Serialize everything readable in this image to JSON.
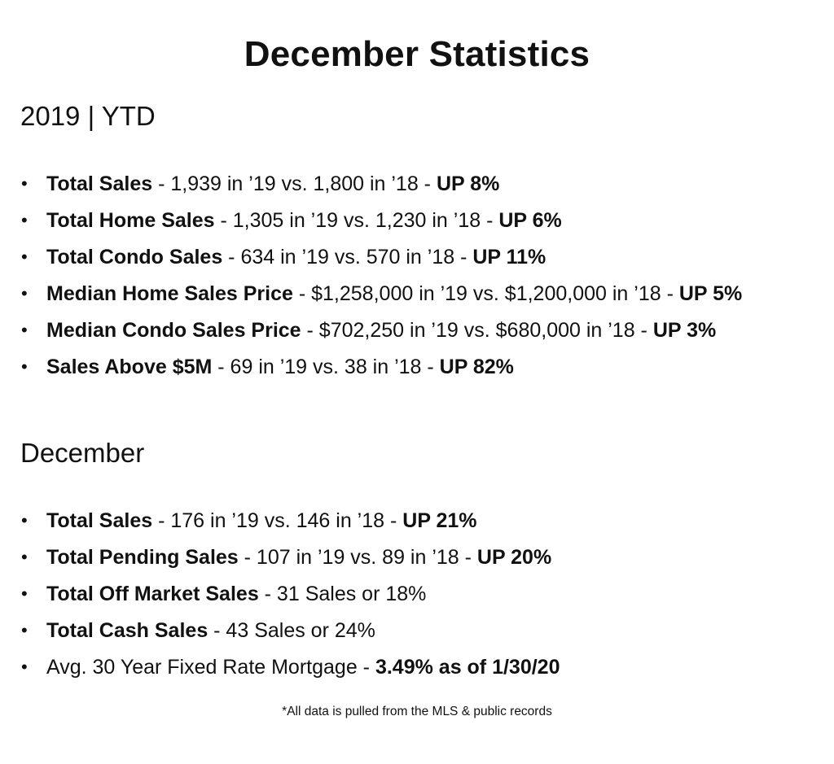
{
  "title": "December Statistics",
  "ytd": {
    "heading": "2019 | YTD",
    "items": [
      {
        "label": "Total Sales",
        "detail": " - 1,939 in ’19 vs. 1,800 in ’18 - ",
        "result": "UP 8%"
      },
      {
        "label": "Total Home Sales",
        "detail": " - 1,305 in ’19 vs. 1,230 in ’18 - ",
        "result": "UP 6%"
      },
      {
        "label": "Total Condo Sales",
        "detail": " - 634 in ’19 vs. 570 in ’18 - ",
        "result": "UP 11%"
      },
      {
        "label": "Median Home Sales Price",
        "detail": " - $1,258,000 in ’19 vs. $1,200,000 in ’18 - ",
        "result": "UP 5%"
      },
      {
        "label": "Median Condo Sales Price",
        "detail": " - $702,250 in ’19 vs. $680,000 in ’18 - ",
        "result": "UP 3%"
      },
      {
        "label": "Sales Above $5M",
        "detail": " - 69 in ’19 vs. 38 in ’18 - ",
        "result": "UP 82%"
      }
    ]
  },
  "december": {
    "heading": "December",
    "items": [
      {
        "label": "Total Sales",
        "detail": " - 176 in ’19 vs. 146 in ’18 - ",
        "result": "UP 21%"
      },
      {
        "label": "Total Pending Sales",
        "detail": " - 107 in ’19 vs. 89 in ’18 - ",
        "result": "UP 20%"
      },
      {
        "label": "Total Off Market Sales",
        "detail": " - 31 Sales or 18%",
        "result": ""
      },
      {
        "label": "Total Cash Sales",
        "detail": " - 43 Sales or 24%",
        "result": ""
      },
      {
        "label": "",
        "detail": "Avg. 30 Year Fixed Rate Mortgage - ",
        "result": "3.49% as of 1/30/20"
      }
    ]
  },
  "footnote": "*All data is pulled from the MLS & public records"
}
